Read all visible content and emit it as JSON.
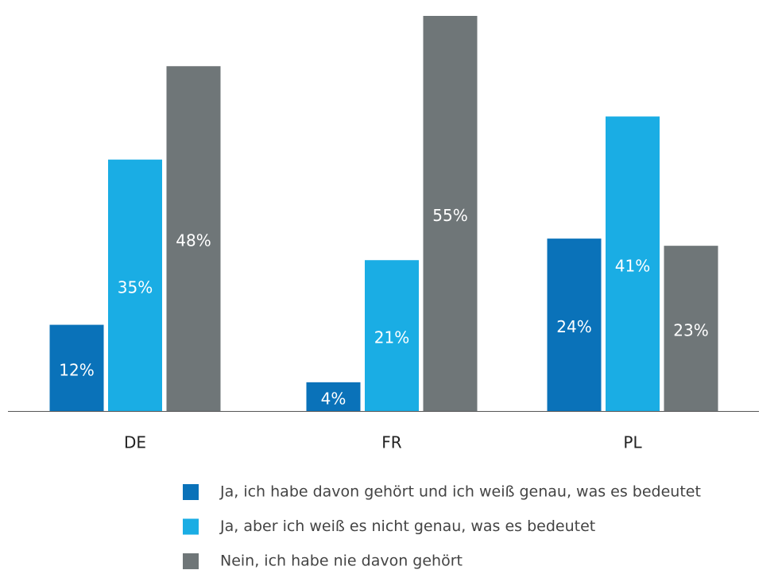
{
  "chart_data": {
    "type": "bar",
    "categories": [
      "DE",
      "FR",
      "PL"
    ],
    "series": [
      {
        "name": "Ja, ich habe davon gehört und ich weiß genau, was es bedeutet",
        "color": "#0a72b9",
        "values": [
          12,
          4,
          24
        ],
        "value_labels": [
          "12%",
          "4%",
          "24%"
        ]
      },
      {
        "name": "Ja, aber ich weiß es nicht genau, was es bedeutet",
        "color": "#1aade4",
        "values": [
          35,
          21,
          41
        ],
        "value_labels": [
          "35%",
          "21%",
          "41%"
        ]
      },
      {
        "name": "Nein, ich habe nie davon  gehört",
        "color": "#6f7678",
        "values": [
          48,
          55,
          23
        ],
        "value_labels": [
          "48%",
          "55%",
          "23%"
        ]
      }
    ]
  }
}
